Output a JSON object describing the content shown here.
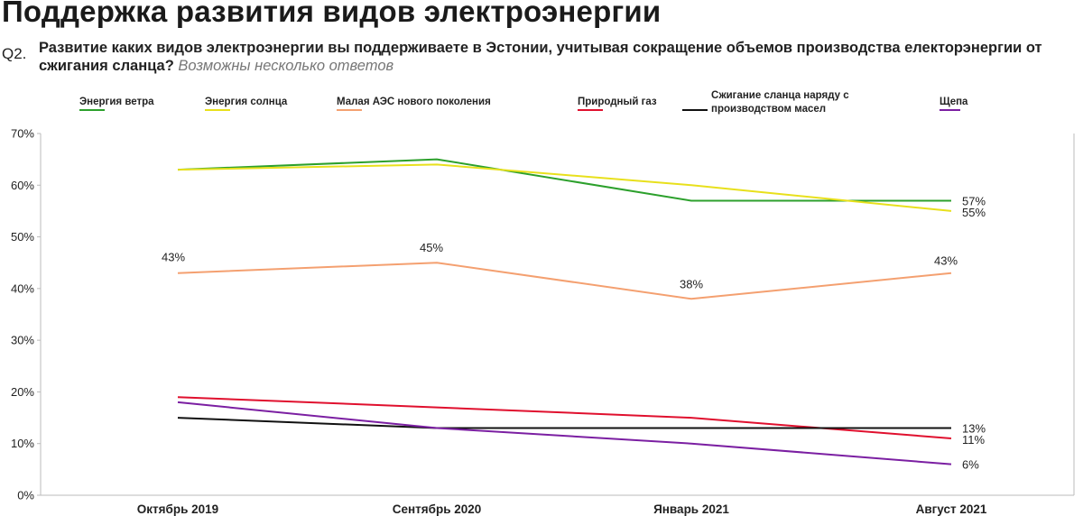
{
  "header": {
    "title": "Поддержка развития видов электроэнергии",
    "question_number": "Q2.",
    "question_text": "Развитие каких видов электроэнергии вы поддерживаете в Эстонии, учитывая сокращение объемов производства електорэнергии от сжигания сланца?",
    "question_note": "Возможны несколько ответов"
  },
  "chart_data": {
    "type": "line",
    "categories": [
      "Октябрь 2019",
      "Сентябрь 2020",
      "Январь 2021",
      "Август 2021"
    ],
    "ylim": [
      0,
      70
    ],
    "yticks": [
      "0%",
      "10%",
      "20%",
      "30%",
      "40%",
      "50%",
      "60%",
      "70%"
    ],
    "grid": false,
    "legend_position": "top",
    "series": [
      {
        "name": "Энергия ветра",
        "color": "#2ca02c",
        "values": [
          63,
          65,
          57,
          57
        ],
        "labels": [
          "",
          "",
          "",
          "57%"
        ]
      },
      {
        "name": "Энергия солнца",
        "color": "#e8e01c",
        "values": [
          63,
          64,
          60,
          55
        ],
        "labels": [
          "",
          "",
          "",
          "55%"
        ]
      },
      {
        "name": "Малая АЭС нового поколения",
        "color": "#f4a070",
        "values": [
          43,
          45,
          38,
          43
        ],
        "labels": [
          "43%",
          "45%",
          "38%",
          "43%"
        ]
      },
      {
        "name": "Природный газ",
        "color": "#e0102e",
        "values": [
          19,
          17,
          15,
          11
        ],
        "labels": [
          "",
          "",
          "",
          "11%"
        ]
      },
      {
        "name": "Сжигание сланца наряду с производством масел",
        "legend_lines": [
          "Сжигание сланца наряду с",
          "производством масел"
        ],
        "color": "#111111",
        "values": [
          15,
          13,
          13,
          13
        ],
        "labels": [
          "",
          "",
          "",
          "13%"
        ]
      },
      {
        "name": "Щепа",
        "color": "#7b1fa2",
        "values": [
          18,
          13,
          10,
          6
        ],
        "labels": [
          "",
          "",
          "",
          "6%"
        ]
      }
    ]
  }
}
